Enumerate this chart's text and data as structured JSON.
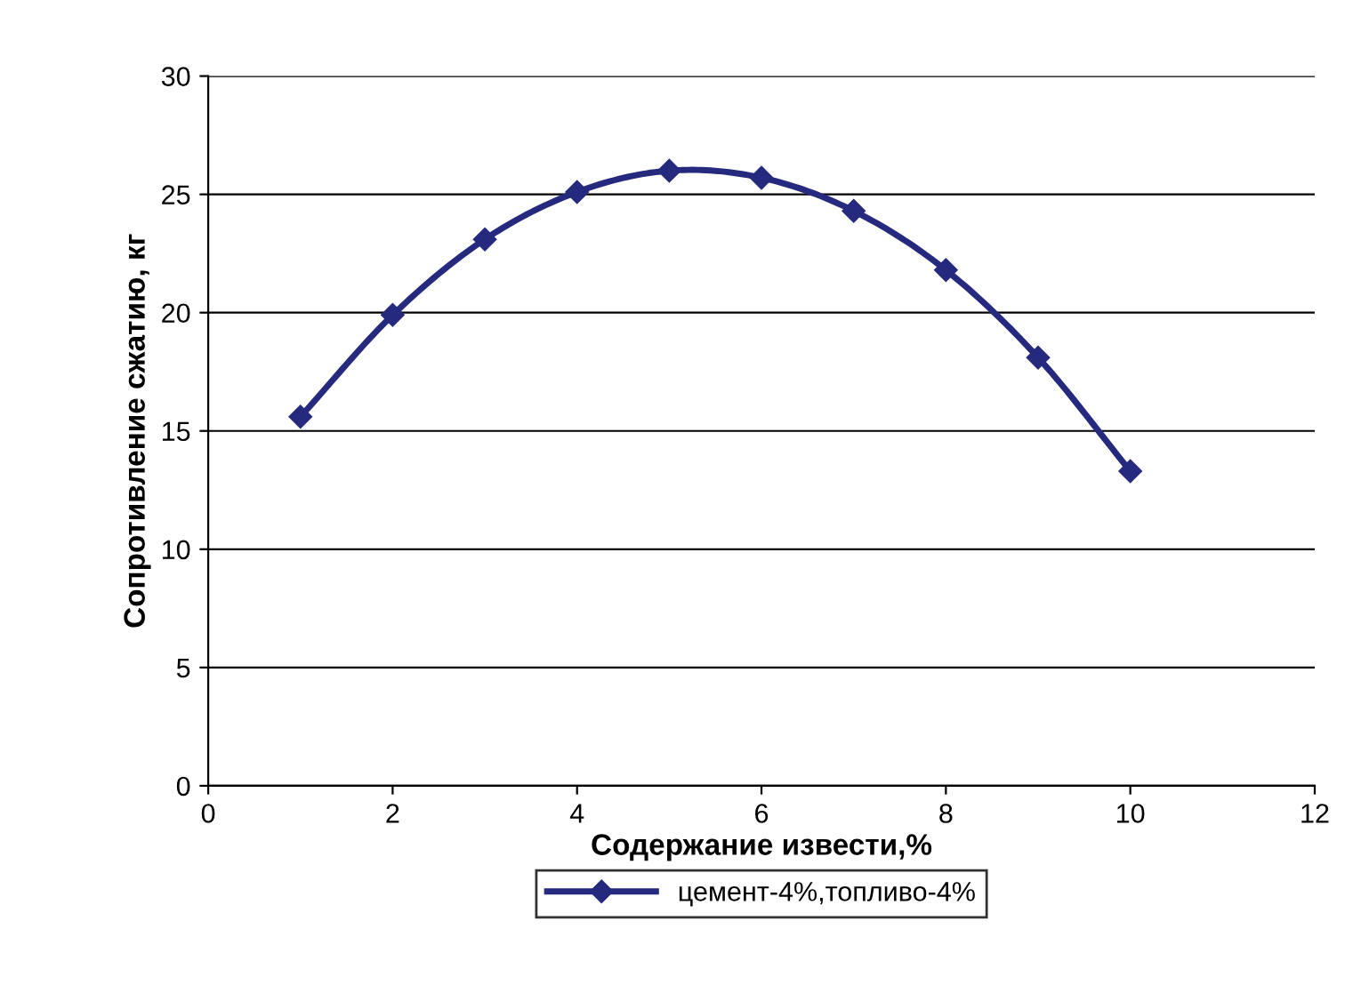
{
  "chart_data": {
    "type": "line",
    "xlabel": "Содержание извести,%",
    "ylabel": "Сопротивление сжатию, кг",
    "x": [
      1,
      2,
      3,
      4,
      5,
      6,
      7,
      8,
      9,
      10
    ],
    "series": [
      {
        "name": "цемент-4%,топливо-4%",
        "color": "#262a7e",
        "values": [
          15.6,
          19.9,
          23.1,
          25.1,
          26.0,
          25.7,
          24.3,
          21.8,
          18.1,
          13.3
        ]
      }
    ],
    "xlim": [
      0,
      12
    ],
    "xticks": [
      0,
      2,
      4,
      6,
      8,
      10,
      12
    ],
    "ylim": [
      0,
      30
    ],
    "yticks": [
      0,
      5,
      10,
      15,
      20,
      25,
      30
    ],
    "grid": "y",
    "legend": "bottom",
    "marker": "diamond",
    "line_style": "solid"
  }
}
